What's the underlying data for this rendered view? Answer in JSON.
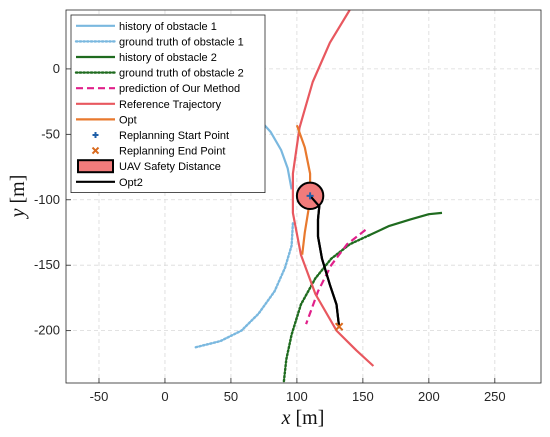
{
  "chart_data": {
    "type": "line",
    "xlabel_var": "x",
    "xlabel_unit": "[m]",
    "ylabel_var": "y",
    "ylabel_unit": "[m]",
    "xlim": [
      -75,
      285
    ],
    "ylim": [
      -240,
      45
    ],
    "xticks": [
      -50,
      0,
      50,
      100,
      150,
      200,
      250
    ],
    "yticks": [
      0,
      -50,
      -100,
      -150,
      -200
    ],
    "grid": true,
    "legend_position": "top-left",
    "series": [
      {
        "name": "history of obstacle 1",
        "color": "#7ab8df",
        "style": "solid",
        "points": [
          [
            70,
            -37
          ],
          [
            80,
            -48
          ],
          [
            88,
            -62
          ],
          [
            93,
            -76
          ],
          [
            96,
            -92
          ]
        ]
      },
      {
        "name": "ground truth of obstacle 1",
        "color": "#7ab8df",
        "style": "dotted",
        "points": [
          [
            97,
            -118
          ],
          [
            96,
            -135
          ],
          [
            91,
            -152
          ],
          [
            83,
            -170
          ],
          [
            71,
            -187
          ],
          [
            58,
            -200
          ],
          [
            42,
            -208
          ],
          [
            22,
            -213
          ]
        ]
      },
      {
        "name": "history of obstacle 2",
        "color": "#1f6b1f",
        "style": "solid",
        "points": [
          [
            155,
            -127
          ],
          [
            170,
            -120
          ],
          [
            186,
            -115
          ],
          [
            200,
            -111
          ],
          [
            210,
            -110
          ]
        ]
      },
      {
        "name": "ground truth of obstacle 2",
        "color": "#1f6b1f",
        "style": "dotted",
        "points": [
          [
            155,
            -127
          ],
          [
            140,
            -134
          ],
          [
            126,
            -145
          ],
          [
            114,
            -160
          ],
          [
            103,
            -180
          ],
          [
            96,
            -203
          ],
          [
            92,
            -222
          ],
          [
            90,
            -240
          ]
        ]
      },
      {
        "name": "prediction of Our Method",
        "color": "#e0208a",
        "style": "dashed",
        "points": [
          [
            152,
            -123
          ],
          [
            138,
            -134
          ],
          [
            126,
            -150
          ],
          [
            116,
            -170
          ],
          [
            107,
            -195
          ]
        ]
      },
      {
        "name": "Reference Trajectory",
        "color": "#e8585f",
        "style": "solid",
        "points": [
          [
            140,
            45
          ],
          [
            125,
            20
          ],
          [
            112,
            -10
          ],
          [
            102,
            -45
          ],
          [
            97,
            -80
          ],
          [
            97,
            -110
          ],
          [
            103,
            -142
          ],
          [
            114,
            -172
          ],
          [
            130,
            -200
          ],
          [
            145,
            -215
          ],
          [
            158,
            -227
          ]
        ]
      },
      {
        "name": "Opt",
        "color": "#e8792e",
        "style": "solid",
        "points": [
          [
            100,
            -43
          ],
          [
            106,
            -60
          ],
          [
            110,
            -80
          ],
          [
            110,
            -100
          ],
          [
            106,
            -125
          ],
          [
            104,
            -142
          ]
        ]
      },
      {
        "name": "Opt2",
        "color": "#000000",
        "style": "solid",
        "points": [
          [
            110,
            -97
          ],
          [
            117,
            -105
          ],
          [
            116,
            -115
          ],
          [
            116,
            -128
          ],
          [
            119,
            -145
          ],
          [
            125,
            -165
          ],
          [
            130,
            -180
          ],
          [
            132,
            -197
          ]
        ]
      }
    ],
    "markers": [
      {
        "name": "Replanning Start Point",
        "symbol": "+",
        "color": "#1f5fa8",
        "x": 110,
        "y": -97
      },
      {
        "name": "Replanning End Point",
        "symbol": "x",
        "color": "#d96a1e",
        "x": 132,
        "y": -197
      }
    ],
    "safety_circle": {
      "name": "UAV Safety Distance",
      "x": 110,
      "y": -97,
      "radius": 10,
      "fill": "#f17b7b",
      "edge": "#000000"
    }
  }
}
